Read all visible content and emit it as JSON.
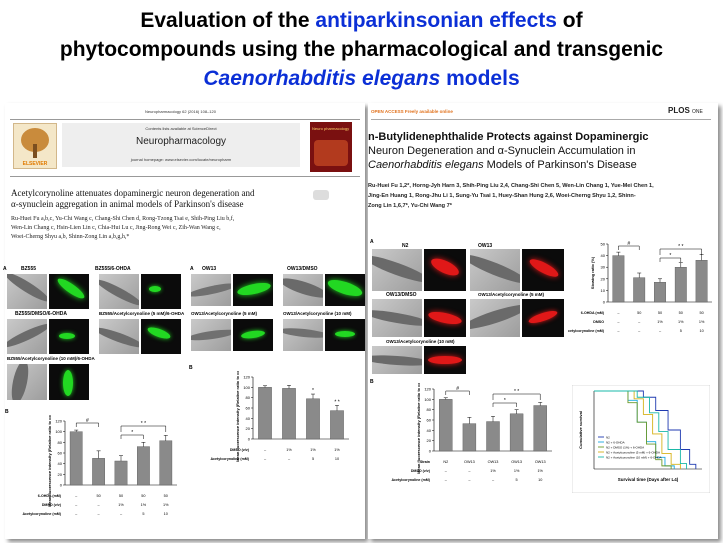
{
  "title": {
    "line1_a": "Evaluation of the ",
    "line1_b": "antiparkinsonian effects",
    "line1_c": " of",
    "line2": "phytocompounds using the pharmacological and transgenic",
    "line3_a": "Caenorhabditis elegans",
    "line3_b": " models"
  },
  "left_paper": {
    "citation": "Neuropharmacology 62 (2016) 108–120",
    "contents": "Contents lists available at ScienceDirect",
    "journal": "Neuropharmacology",
    "homepage": "journal homepage: www.elsevier.com/locate/neuropharm",
    "publisher": "ELSEVIER",
    "cover_title": "Neuro pharmacology",
    "article_title_1": "Acetylcorynoline attenuates dopaminergic neuron degeneration and",
    "article_title_2": "α-synuclein aggregation in animal models of Parkinson's disease",
    "authors_1": "Ru-Huei Fu a,b,c, Yu-Chi Wang c, Chang-Shi Chen d, Rong-Tzong Tsai e, Shih-Ping Liu b,f,",
    "authors_2": "Wen-Lin Chang c, Hsin-Lien Lin c, Chia-Hui Lu c, Jing-Rong Wei c, Zih-Wan Wang c,",
    "authors_3": "Woei-Cherng Shyu a,b, Shinn-Zong Lin a,b,g,h,*",
    "fig_labels": {
      "a": "A",
      "bz55": "BZ555",
      "bz55_ohda": "BZ555/6-OHDA",
      "bz55_dmso": "BZ555/DMSO/6-OHDA",
      "bz55_acet5": "BZ555/Acetylcorynoline (5 mM)/6-OHDA",
      "bz55_acet10": "BZ555/Acetylcorynoline (10 mM)/6-OHDA",
      "ow13": "OW13",
      "ow13_dmso": "OW13/DMSO",
      "ow13_acet5": "OW13/Acetylcorynoline (5 mM)",
      "ow13_acet10": "OW13/Acetylcorynoline (10 mM)",
      "b": "B"
    }
  },
  "right_paper": {
    "open_access": "OPEN ACCESS Freely available online",
    "plos": "PLOS",
    "plos_one": "ONE",
    "title_1": "n-Butylidenephthalide Protects against Dopaminergic",
    "title_2": "Neuron Degeneration and α-Synuclein Accumulation in",
    "title_3a": "Caenorhabditis elegans",
    "title_3b": " Models of Parkinson's Disease",
    "authors_1": "Ru-Huei Fu 1,2*, Horng-Jyh Harn 3, Shih-Ping Liu 2,4, Chang-Shi Chen 5, Wen-Lin Chang 1, Yue-Mei Chen 1,",
    "authors_2": "Jing-En Huang 1, Rong-Jhu Li 1, Sung-Yu Tsai 1, Huey-Shan Hung 2,6, Woei-Cherng Shyu 1,2, Shinn-",
    "authors_3": "Zong Lin 1,6,7*, Yu-Chi Wang 7*",
    "fig_labels": {
      "a": "A",
      "n2": "N2",
      "ow13": "OW13",
      "ow13_dmso": "OW13/DMSO",
      "ow13_acet5": "OW13/Acetylcorynoline (5 mM)",
      "ow13_acet10": "OW13/Acetylcorynoline (10 mM)",
      "b": "B"
    }
  },
  "charts": {
    "chart_left_bz": {
      "ylabel": "Mean fluorescence intensity (Relative ratio to control, %)",
      "yticks": [
        "0",
        "20",
        "40",
        "60",
        "80",
        "100",
        "120"
      ],
      "rows": [
        {
          "label": "6-OHDA (mM)",
          "vals": [
            "–",
            "50",
            "50",
            "50",
            "50"
          ]
        },
        {
          "label": "DMSO (v/v)",
          "vals": [
            "–",
            "–",
            "1%",
            "1%",
            "1%"
          ]
        },
        {
          "label": "Acetylcorynoline (mM)",
          "vals": [
            "–",
            "–",
            "–",
            "5",
            "10"
          ]
        }
      ]
    },
    "chart_left_ow": {
      "ylabel": "Mean fluorescence intensity (Relative ratio to control, %)",
      "yticks": [
        "0",
        "20",
        "40",
        "60",
        "80",
        "100",
        "120"
      ],
      "rows": [
        {
          "label": "DMSO (v/v)",
          "vals": [
            "–",
            "1%",
            "1%",
            "1%"
          ]
        },
        {
          "label": "Acetylcorynoline (mM)",
          "vals": [
            "–",
            "–",
            "5",
            "10"
          ]
        }
      ]
    },
    "chart_right_slow": {
      "ylabel": "Slowing ratio (%)",
      "yticks": [
        "0",
        "10",
        "20",
        "30",
        "40",
        "50"
      ],
      "rows": [
        {
          "label": "6-OHDA (mM)",
          "vals": [
            "–",
            "50",
            "50",
            "50",
            "50"
          ]
        },
        {
          "label": "DMSO",
          "vals": [
            "–",
            "–",
            "1%",
            "1%",
            "1%"
          ]
        },
        {
          "label": "Acetylcorynoline (mM)",
          "vals": [
            "–",
            "–",
            "–",
            "5",
            "10"
          ]
        }
      ]
    },
    "chart_right_ow": {
      "ylabel": "Mean fluorescence intensity (Relative ratio to control, %)",
      "yticks": [
        "0",
        "20",
        "40",
        "60",
        "80",
        "100",
        "120"
      ],
      "rows": [
        {
          "label": "Strain",
          "vals": [
            "N2",
            "OW13",
            "OW13",
            "OW13",
            "OW13"
          ]
        },
        {
          "label": "DMSO (v/v)",
          "vals": [
            "–",
            "–",
            "1%",
            "1%",
            "1%"
          ]
        },
        {
          "label": "Acetylcorynoline (mM)",
          "vals": [
            "–",
            "–",
            "–",
            "5",
            "10"
          ]
        }
      ]
    },
    "chart_survival": {
      "xlabel": "Survival time (Days after L4)",
      "ylabel": "Cumulative survival",
      "legend": [
        "N2",
        "N2 + 6-OHDA",
        "N2 + DMSO (1%) + 6-OHDA",
        "N2 + Acetylcorynoline (5 mM) + 6-OHDA",
        "N2 + Acetylcorynoline (10 mM) + 6-OHDA"
      ]
    }
  },
  "chart_data": [
    {
      "type": "bar",
      "categories": [
        "1",
        "2",
        "3",
        "4",
        "5"
      ],
      "values": [
        100,
        50,
        45,
        72,
        83
      ],
      "errors": [
        3,
        14,
        10,
        8,
        10
      ],
      "ylim": [
        0,
        120
      ],
      "ylabel": "Mean fluorescence intensity (Relative ratio to control, %)",
      "sig": [
        "#",
        "*",
        "* *"
      ]
    },
    {
      "type": "bar",
      "categories": [
        "1",
        "2",
        "3",
        "4"
      ],
      "values": [
        100,
        98,
        78,
        55
      ],
      "errors": [
        3,
        6,
        9,
        10
      ],
      "ylim": [
        0,
        120
      ],
      "ylabel": "Mean fluorescence intensity (Relative ratio to control, %)",
      "sig": [
        "*",
        "* *"
      ]
    },
    {
      "type": "bar",
      "categories": [
        "1",
        "2",
        "3",
        "4",
        "5"
      ],
      "values": [
        40,
        21,
        17,
        30,
        36
      ],
      "errors": [
        3,
        4,
        3,
        4,
        5
      ],
      "ylim": [
        0,
        50
      ],
      "ylabel": "Slowing ratio (%)",
      "sig": [
        "#",
        "*",
        "* *"
      ]
    },
    {
      "type": "bar",
      "categories": [
        "1",
        "2",
        "3",
        "4",
        "5"
      ],
      "values": [
        100,
        53,
        57,
        72,
        88
      ],
      "errors": [
        3,
        12,
        10,
        8,
        6
      ],
      "ylim": [
        0,
        120
      ],
      "ylabel": "Mean fluorescence intensity (Relative ratio to control, %)",
      "sig": [
        "#",
        "*",
        "* *"
      ]
    },
    {
      "type": "line",
      "xlabel": "Survival time (Days after L4)",
      "ylabel": "Cumulative survival",
      "xlim": [
        0,
        35
      ],
      "ylim": [
        0,
        1
      ],
      "series": [
        {
          "name": "N2",
          "x": [
            0,
            12,
            16,
            20,
            24,
            28,
            31,
            33
          ],
          "y": [
            1,
            1,
            0.92,
            0.75,
            0.5,
            0.25,
            0.06,
            0
          ]
        },
        {
          "name": "N2 + 6-OHDA",
          "x": [
            0,
            8,
            11,
            14,
            17,
            20,
            23,
            26
          ],
          "y": [
            1,
            1,
            0.88,
            0.6,
            0.35,
            0.15,
            0.04,
            0
          ]
        },
        {
          "name": "N2 + DMSO (1%) + 6-OHDA",
          "x": [
            0,
            8,
            11,
            14,
            17,
            20,
            22,
            25
          ],
          "y": [
            1,
            1,
            0.85,
            0.6,
            0.32,
            0.12,
            0.04,
            0
          ]
        },
        {
          "name": "N2 + Acetylcorynoline (5 mM) + 6-OHDA",
          "x": [
            0,
            10,
            13,
            16,
            19,
            22,
            25,
            28
          ],
          "y": [
            1,
            1,
            0.9,
            0.7,
            0.45,
            0.2,
            0.06,
            0
          ]
        },
        {
          "name": "N2 + Acetylcorynoline (10 mM) + 6-OHDA",
          "x": [
            0,
            11,
            14,
            18,
            21,
            24,
            28,
            30
          ],
          "y": [
            1,
            1,
            0.92,
            0.72,
            0.48,
            0.25,
            0.07,
            0
          ]
        }
      ]
    }
  ],
  "colors": {
    "accent": "#0b2fd6",
    "bar": "#8a8a8a",
    "gfp": "#22d822",
    "rfp": "#e01818"
  }
}
